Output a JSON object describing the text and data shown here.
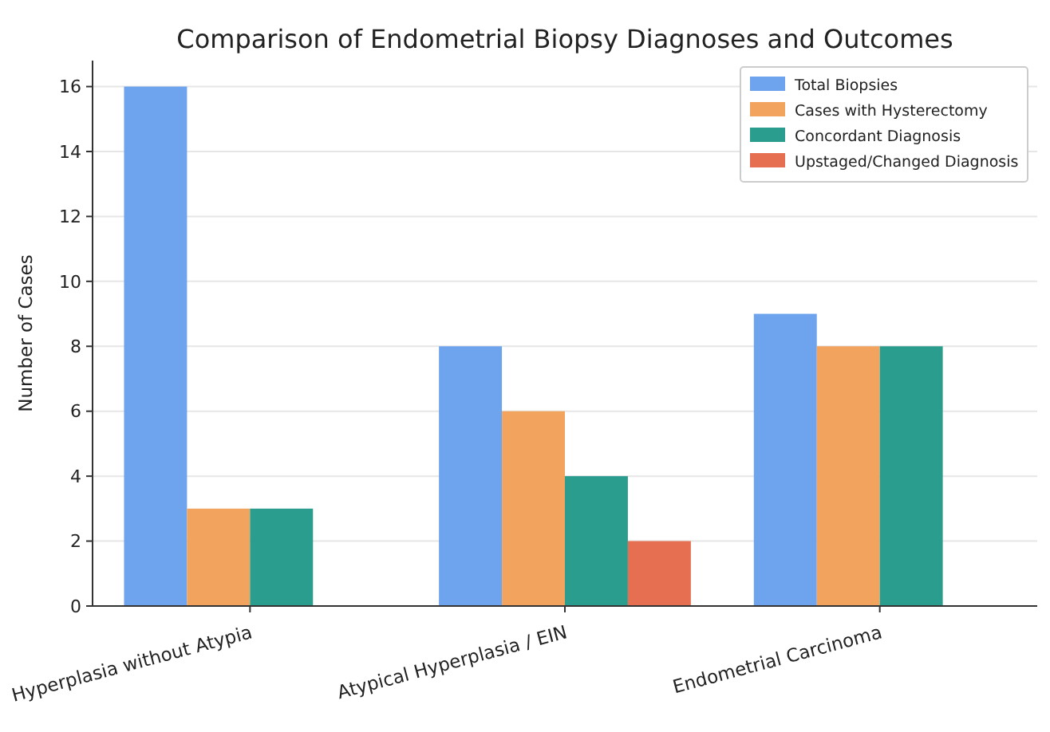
{
  "chart_data": {
    "type": "bar",
    "title": "Comparison of Endometrial Biopsy Diagnoses and Outcomes",
    "ylabel": "Number of Cases",
    "categories": [
      "Hyperplasia without Atypia",
      "Atypical Hyperplasia / EIN",
      "Endometrial Carcinoma"
    ],
    "series": [
      {
        "name": "Total Biopsies",
        "color": "#6ea3ee",
        "values": [
          16,
          8,
          9
        ]
      },
      {
        "name": "Cases with Hysterectomy",
        "color": "#f2a35e",
        "values": [
          3,
          6,
          8
        ]
      },
      {
        "name": "Concordant Diagnosis",
        "color": "#2a9d8f",
        "values": [
          3,
          4,
          8
        ]
      },
      {
        "name": "Upstaged/Changed Diagnosis",
        "color": "#e76f51",
        "values": [
          null,
          2,
          null
        ]
      }
    ],
    "ylim": [
      0,
      16.8
    ],
    "yticks": [
      0,
      2,
      4,
      6,
      8,
      10,
      12,
      14,
      16
    ],
    "grid": "y",
    "legend": "top right"
  }
}
